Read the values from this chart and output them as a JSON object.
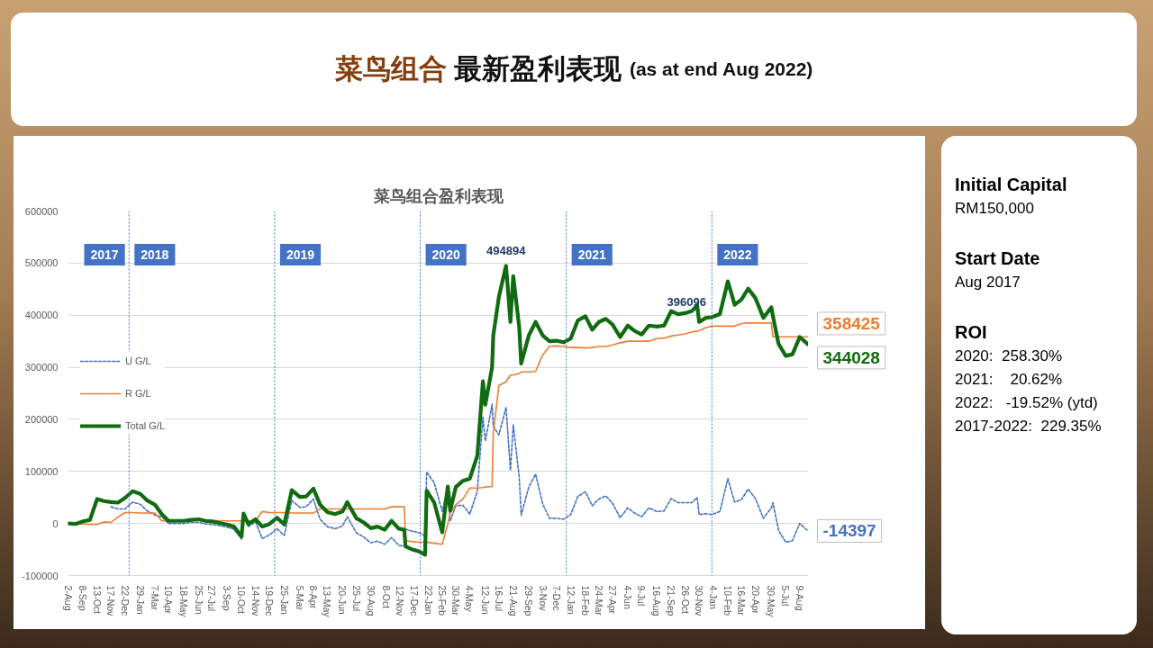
{
  "chart_data": [
    {
      "type": "line",
      "title": "菜鸟组合 最新盈利表现 (as at end Aug 2022)",
      "subtitle": "菜鸟组合盈利表现",
      "x": [
        "2017-08-02",
        "2017-08-20",
        "2017-09-08",
        "2017-09-25",
        "2017-10-13",
        "2017-10-30",
        "2017-11-17",
        "2017-12-04",
        "2017-12-22",
        "2018-01-10",
        "2018-01-29",
        "2018-02-16",
        "2018-03-07",
        "2018-03-24",
        "2018-04-10",
        "2018-04-29",
        "2018-05-18",
        "2018-06-06",
        "2018-06-25",
        "2018-07-11",
        "2018-07-27",
        "2018-08-15",
        "2018-09-03",
        "2018-09-21",
        "2018-10-10",
        "2018-10-15",
        "2018-10-27",
        "2018-11-14",
        "2018-12-01",
        "2018-12-19",
        "2019-01-07",
        "2019-01-25",
        "2019-02-13",
        "2019-03-05",
        "2019-03-21",
        "2019-04-08",
        "2019-04-25",
        "2019-05-13",
        "2019-06-01",
        "2019-06-20",
        "2019-07-02",
        "2019-07-25",
        "2019-08-12",
        "2019-08-30",
        "2019-09-16",
        "2019-10-04",
        "2019-10-21",
        "2019-11-08",
        "2019-11-22",
        "2019-11-25",
        "2019-12-12",
        "2019-12-30",
        "2020-01-13",
        "2020-01-17",
        "2020-02-05",
        "2020-02-25",
        "2020-03-10",
        "2020-03-16",
        "2020-03-30",
        "2020-04-17",
        "2020-05-04",
        "2020-05-23",
        "2020-06-06",
        "2020-06-12",
        "2020-06-29",
        "2020-07-02",
        "2020-07-16",
        "2020-08-03",
        "2020-08-14",
        "2020-08-21",
        "2020-09-05",
        "2020-09-10",
        "2020-09-29",
        "2020-10-16",
        "2020-11-03",
        "2020-11-20",
        "2020-12-07",
        "2020-12-25",
        "2021-01-12",
        "2021-01-30",
        "2021-02-18",
        "2021-03-07",
        "2021-03-24",
        "2021-04-10",
        "2021-04-27",
        "2021-05-16",
        "2021-06-04",
        "2021-06-21",
        "2021-07-09",
        "2021-07-27",
        "2021-08-16",
        "2021-09-03",
        "2021-09-21",
        "2021-10-08",
        "2021-10-26",
        "2021-11-12",
        "2021-11-25",
        "2021-11-30",
        "2021-12-17",
        "2021-12-31",
        "2022-01-21",
        "2022-02-10",
        "2022-02-27",
        "2022-03-16",
        "2022-04-02",
        "2022-04-20",
        "2022-05-10",
        "2022-05-30",
        "2022-06-03",
        "2022-06-17",
        "2022-07-05",
        "2022-07-22",
        "2022-08-09",
        "2022-08-30"
      ],
      "series": [
        {
          "name": "U G/L",
          "color": "#4472c4",
          "line_style": "dashed",
          "values": [
            null,
            null,
            null,
            null,
            null,
            null,
            32000,
            28000,
            28000,
            41000,
            37000,
            24000,
            16000,
            13000,
            0,
            0,
            0,
            2000,
            2000,
            -1000,
            -2000,
            -4000,
            -7000,
            -11000,
            -30000,
            14000,
            -6000,
            3000,
            -29000,
            -22000,
            -10000,
            -23000,
            44000,
            31000,
            32000,
            47000,
            8000,
            -6000,
            -10000,
            -5000,
            13000,
            -18000,
            -26000,
            -37000,
            -34000,
            -40000,
            -27000,
            -42000,
            -44000,
            -11000,
            -15000,
            -18000,
            -24000,
            99000,
            78000,
            23000,
            72000,
            5000,
            34000,
            35000,
            18000,
            62000,
            204000,
            158000,
            229000,
            187000,
            170000,
            223000,
            102000,
            190000,
            89000,
            16000,
            70000,
            95000,
            37000,
            10000,
            10000,
            8000,
            17000,
            52000,
            61000,
            34000,
            47000,
            53000,
            39000,
            11000,
            30000,
            20000,
            13000,
            30000,
            23000,
            24000,
            48000,
            40000,
            40000,
            40000,
            50000,
            17000,
            19000,
            17000,
            23000,
            86000,
            41000,
            46000,
            66000,
            48000,
            10000,
            30000,
            40000,
            -13000,
            -36000,
            -33000,
            0,
            -14397
          ]
        },
        {
          "name": "R G/L",
          "color": "#ed7d31",
          "values": [
            0,
            0,
            -1000,
            -2000,
            -2000,
            3000,
            2000,
            12000,
            21000,
            21000,
            20000,
            20000,
            20000,
            5000,
            5000,
            5000,
            5000,
            5000,
            6000,
            6000,
            6000,
            5000,
            5000,
            5000,
            5000,
            5000,
            5000,
            5000,
            23000,
            21000,
            21000,
            21000,
            20000,
            20000,
            20000,
            20000,
            28000,
            28000,
            28000,
            28000,
            28000,
            28000,
            28000,
            28000,
            28000,
            28000,
            32000,
            32000,
            32000,
            -33000,
            -35000,
            -36000,
            -36000,
            -36000,
            -38000,
            -40000,
            -1000,
            20000,
            36000,
            47000,
            68000,
            68000,
            69000,
            70000,
            71000,
            174000,
            265000,
            272000,
            285000,
            285000,
            288000,
            291000,
            291000,
            292000,
            324000,
            340000,
            341000,
            340000,
            338000,
            338000,
            337000,
            338000,
            340000,
            340000,
            343000,
            347000,
            350000,
            350000,
            350000,
            350000,
            355000,
            356000,
            360000,
            362000,
            364000,
            368000,
            369000,
            370000,
            376000,
            379000,
            379000,
            379000,
            379000,
            384000,
            385000,
            385000,
            385000,
            385000,
            358425,
            358425,
            358425,
            358425,
            358425,
            358425
          ]
        },
        {
          "name": "Total G/L",
          "color": "#116b11",
          "values": [
            0,
            -1000,
            4000,
            7000,
            47000,
            43000,
            41000,
            40000,
            49000,
            62000,
            57000,
            44000,
            36000,
            18000,
            5000,
            5000,
            5000,
            7000,
            8000,
            5000,
            4000,
            1000,
            -2000,
            -6000,
            -25000,
            19000,
            -1000,
            8000,
            -6000,
            -1000,
            11000,
            -2000,
            64000,
            51000,
            52000,
            67000,
            36000,
            22000,
            18000,
            23000,
            41000,
            10000,
            2000,
            -9000,
            -6000,
            -12000,
            5000,
            -10000,
            -12000,
            -44000,
            -50000,
            -54000,
            -60000,
            63000,
            40000,
            -17000,
            71000,
            25000,
            70000,
            82000,
            86000,
            130000,
            273000,
            228000,
            300000,
            361000,
            435000,
            494894,
            387000,
            475000,
            377000,
            307000,
            361000,
            387000,
            361000,
            350000,
            351000,
            348000,
            355000,
            390000,
            398000,
            372000,
            387000,
            393000,
            382000,
            358000,
            380000,
            370000,
            363000,
            380000,
            378000,
            380000,
            408000,
            402000,
            404000,
            408000,
            419000,
            387000,
            395000,
            396096,
            402000,
            465000,
            420000,
            430000,
            451000,
            433000,
            395000,
            415000,
            398000,
            345000,
            322000,
            325000,
            358000,
            344028
          ]
        }
      ],
      "xlim": [
        "2017-08-01",
        "2022-08-31"
      ],
      "ylim": [
        -100000,
        600000
      ],
      "xticks": [
        {
          "value": "2017-08-02",
          "label": "2-Aug"
        },
        {
          "value": "2017-09-08",
          "label": "8-Sep"
        },
        {
          "value": "2017-10-13",
          "label": "13-Oct"
        },
        {
          "value": "2017-11-17",
          "label": "17-Nov"
        },
        {
          "value": "2017-12-22",
          "label": "22-Dec"
        },
        {
          "value": "2018-01-29",
          "label": "29-Jan"
        },
        {
          "value": "2018-03-07",
          "label": "7-Mar"
        },
        {
          "value": "2018-04-10",
          "label": "10-Apr"
        },
        {
          "value": "2018-05-18",
          "label": "18-May"
        },
        {
          "value": "2018-06-25",
          "label": "25-Jun"
        },
        {
          "value": "2018-07-27",
          "label": "27-Jul"
        },
        {
          "value": "2018-09-03",
          "label": "3-Sep"
        },
        {
          "value": "2018-10-10",
          "label": "10-Oct"
        },
        {
          "value": "2018-11-14",
          "label": "14-Nov"
        },
        {
          "value": "2018-12-19",
          "label": "19-Dec"
        },
        {
          "value": "2019-01-25",
          "label": "25-Jan"
        },
        {
          "value": "2019-03-05",
          "label": "5-Mar"
        },
        {
          "value": "2019-04-08",
          "label": "8-Apr"
        },
        {
          "value": "2019-05-13",
          "label": "13-May"
        },
        {
          "value": "2019-06-20",
          "label": "20-Jun"
        },
        {
          "value": "2019-07-25",
          "label": "25-Jul"
        },
        {
          "value": "2019-08-30",
          "label": "30-Aug"
        },
        {
          "value": "2019-10-08",
          "label": "8-Oct"
        },
        {
          "value": "2019-11-12",
          "label": "12-Nov"
        },
        {
          "value": "2019-12-17",
          "label": "17-Dec"
        },
        {
          "value": "2020-01-22",
          "label": "22-Jan"
        },
        {
          "value": "2020-02-25",
          "label": "25-Feb"
        },
        {
          "value": "2020-03-30",
          "label": "30-Mar"
        },
        {
          "value": "2020-05-04",
          "label": "4-May"
        },
        {
          "value": "2020-06-12",
          "label": "12-Jun"
        },
        {
          "value": "2020-07-16",
          "label": "16-Jul"
        },
        {
          "value": "2020-08-21",
          "label": "21-Aug"
        },
        {
          "value": "2020-09-29",
          "label": "29-Sep"
        },
        {
          "value": "2020-11-03",
          "label": "3-Nov"
        },
        {
          "value": "2020-12-07",
          "label": "7-Dec"
        },
        {
          "value": "2021-01-12",
          "label": "12-Jan"
        },
        {
          "value": "2021-02-18",
          "label": "18-Feb"
        },
        {
          "value": "2021-03-24",
          "label": "24-Mar"
        },
        {
          "value": "2021-04-27",
          "label": "27-Apr"
        },
        {
          "value": "2021-06-04",
          "label": "4-Jun"
        },
        {
          "value": "2021-07-09",
          "label": "9-Jul"
        },
        {
          "value": "2021-08-16",
          "label": "16-Aug"
        },
        {
          "value": "2021-09-21",
          "label": "21-Sep"
        },
        {
          "value": "2021-10-26",
          "label": "26-Oct"
        },
        {
          "value": "2021-11-30",
          "label": "30-Nov"
        },
        {
          "value": "2022-01-04",
          "label": "4-Jan"
        },
        {
          "value": "2022-02-10",
          "label": "10-Feb"
        },
        {
          "value": "2022-03-16",
          "label": "16-Mar"
        },
        {
          "value": "2022-04-20",
          "label": "20-Apr"
        },
        {
          "value": "2022-05-30",
          "label": "30-May"
        },
        {
          "value": "2022-07-05",
          "label": "5-Jul"
        },
        {
          "value": "2022-08-09",
          "label": "9-Aug"
        }
      ],
      "yticks": [
        -100000,
        0,
        100000,
        200000,
        300000,
        400000,
        500000,
        600000
      ],
      "grid": "y",
      "legend": "left",
      "ref_lines": [
        {
          "axis": "x",
          "value": "2018-01-01",
          "label": "2018",
          "color": "#4472c4",
          "line_style": "dotted"
        },
        {
          "axis": "x",
          "value": "2019-01-01",
          "label": "2019",
          "color": "#4472c4",
          "line_style": "dotted"
        },
        {
          "axis": "x",
          "value": "2020-01-01",
          "label": "2020",
          "color": "#4472c4",
          "line_style": "dotted"
        },
        {
          "axis": "x",
          "value": "2021-01-01",
          "label": "2021",
          "color": "#4472c4",
          "line_style": "dotted"
        },
        {
          "axis": "x",
          "value": "2022-01-01",
          "label": "2022",
          "color": "#4472c4",
          "line_style": "dotted"
        }
      ],
      "annotations": [
        "2017",
        {
          "text": "494894",
          "x": "2020-08-03",
          "y": 494894
        },
        {
          "text": "396096",
          "x": "2021-12-31",
          "y": 396096
        },
        {
          "text": "358425",
          "x": "2022-08-30",
          "y": 358425
        },
        {
          "text": "344028",
          "x": "2022-08-30",
          "y": 344028
        },
        {
          "text": "-14397",
          "x": "2022-08-30",
          "y": -14397
        }
      ]
    },
    {
      "type": "other",
      "title": "Initial Capital",
      "annotations": [
        "RM150,000"
      ]
    },
    {
      "type": "other",
      "title": "Start Date",
      "annotations": [
        "Aug 2017"
      ]
    },
    {
      "type": "other",
      "title": "ROI",
      "annotations": [
        "2020:  258.30%",
        "2021:    20.62%",
        "2022:   -19.52% (ytd)",
        "2017-2022:  229.35%"
      ]
    }
  ]
}
